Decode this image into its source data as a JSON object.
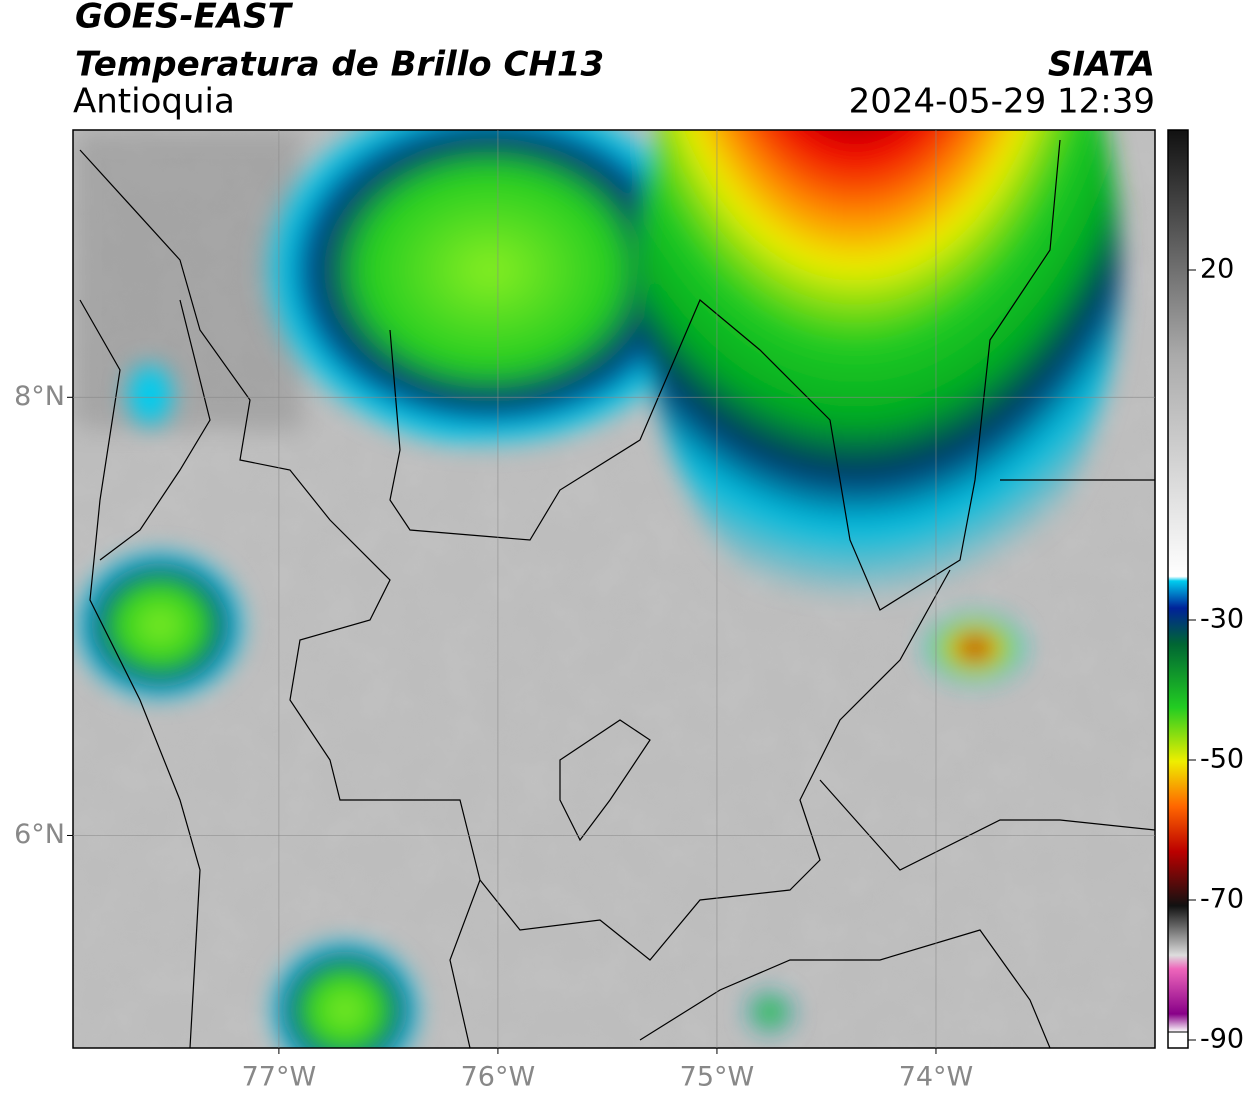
{
  "header": {
    "title": "GOES-EAST",
    "subtitle": "Temperatura de Brillo CH13",
    "region": "Antioquia",
    "source": "SIATA",
    "datetime": "2024-05-29 12:39"
  },
  "map": {
    "xlim": [
      -77.94,
      -73.0
    ],
    "ylim": [
      5.03,
      9.22
    ],
    "xticks": [
      {
        "value": -77,
        "label": "77°W"
      },
      {
        "value": -76,
        "label": "76°W"
      },
      {
        "value": -75,
        "label": "75°W"
      },
      {
        "value": -74,
        "label": "74°W"
      }
    ],
    "yticks": [
      {
        "value": 6,
        "label": "6°N"
      },
      {
        "value": 8,
        "label": "8°N"
      }
    ],
    "grid": true
  },
  "colorbar": {
    "clim": [
      -90,
      40
    ],
    "ticks": [
      20,
      -30,
      -50,
      -70,
      -90
    ]
  }
}
